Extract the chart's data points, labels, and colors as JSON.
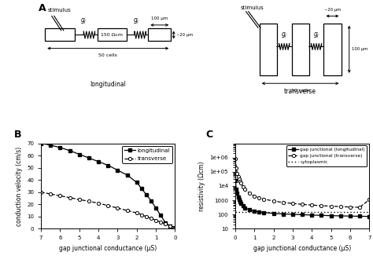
{
  "panel_B": {
    "long_x": [
      7.0,
      6.5,
      6.0,
      5.5,
      5.0,
      4.5,
      4.0,
      3.5,
      3.0,
      2.5,
      2.0,
      1.75,
      1.5,
      1.25,
      1.0,
      0.75,
      0.5,
      0.25,
      0.1,
      0.05,
      0.01
    ],
    "long_y": [
      70,
      68.5,
      66.5,
      64,
      61,
      58,
      55,
      52,
      48,
      44,
      38,
      33,
      28,
      23,
      17,
      11,
      5,
      2.0,
      0.5,
      0.2,
      0.05
    ],
    "trans_x": [
      7.0,
      6.5,
      6.0,
      5.5,
      5.0,
      4.5,
      4.0,
      3.5,
      3.0,
      2.5,
      2.0,
      1.75,
      1.5,
      1.25,
      1.0,
      0.75,
      0.5,
      0.25,
      0.1,
      0.05,
      0.01
    ],
    "trans_y": [
      30,
      28.5,
      27.0,
      25.5,
      24.0,
      22.5,
      21.0,
      19.0,
      17.0,
      15.0,
      13.0,
      11.5,
      10.0,
      8.5,
      7.0,
      5.5,
      4.0,
      2.5,
      1.0,
      0.5,
      0.1
    ],
    "xlabel": "gap junctional conductance (μS)",
    "ylabel": "conduction velocity (cm/s)",
    "xlim": [
      7,
      0
    ],
    "ylim": [
      0,
      70
    ],
    "xticks": [
      7,
      6,
      5,
      4,
      3,
      2,
      1,
      0
    ],
    "yticks": [
      0,
      10,
      20,
      30,
      40,
      50,
      60,
      70
    ]
  },
  "panel_C": {
    "long_x": [
      0.01,
      0.05,
      0.1,
      0.15,
      0.2,
      0.25,
      0.3,
      0.4,
      0.5,
      0.75,
      1.0,
      1.25,
      1.5,
      2.0,
      2.5,
      3.0,
      3.5,
      4.0,
      4.5,
      5.0,
      5.5,
      6.0,
      6.5,
      7.0
    ],
    "long_y": [
      25000,
      6000,
      3000,
      1800,
      1200,
      800,
      600,
      400,
      300,
      210,
      175,
      155,
      140,
      120,
      110,
      103,
      98,
      92,
      88,
      84,
      81,
      78,
      76,
      74
    ],
    "trans_x": [
      0.01,
      0.05,
      0.1,
      0.15,
      0.2,
      0.25,
      0.3,
      0.4,
      0.5,
      0.75,
      1.0,
      1.25,
      1.5,
      2.0,
      2.5,
      3.0,
      3.5,
      4.0,
      4.5,
      5.0,
      5.5,
      6.0,
      6.5,
      7.0
    ],
    "trans_y": [
      800000,
      180000,
      80000,
      48000,
      32000,
      22000,
      16000,
      9000,
      6000,
      3000,
      2000,
      1500,
      1200,
      900,
      700,
      600,
      520,
      460,
      420,
      390,
      360,
      340,
      320,
      1100
    ],
    "cyto_y": 150,
    "xlabel": "gap junctional conductance (μS)",
    "ylabel": "resistivity (Ωcm)",
    "xlim": [
      0,
      7
    ],
    "ylim": [
      10,
      10000000.0
    ],
    "xticks": [
      0,
      1,
      2,
      3,
      4,
      5,
      6,
      7
    ]
  },
  "fig_width": 4.74,
  "fig_height": 3.35,
  "dpi": 100
}
